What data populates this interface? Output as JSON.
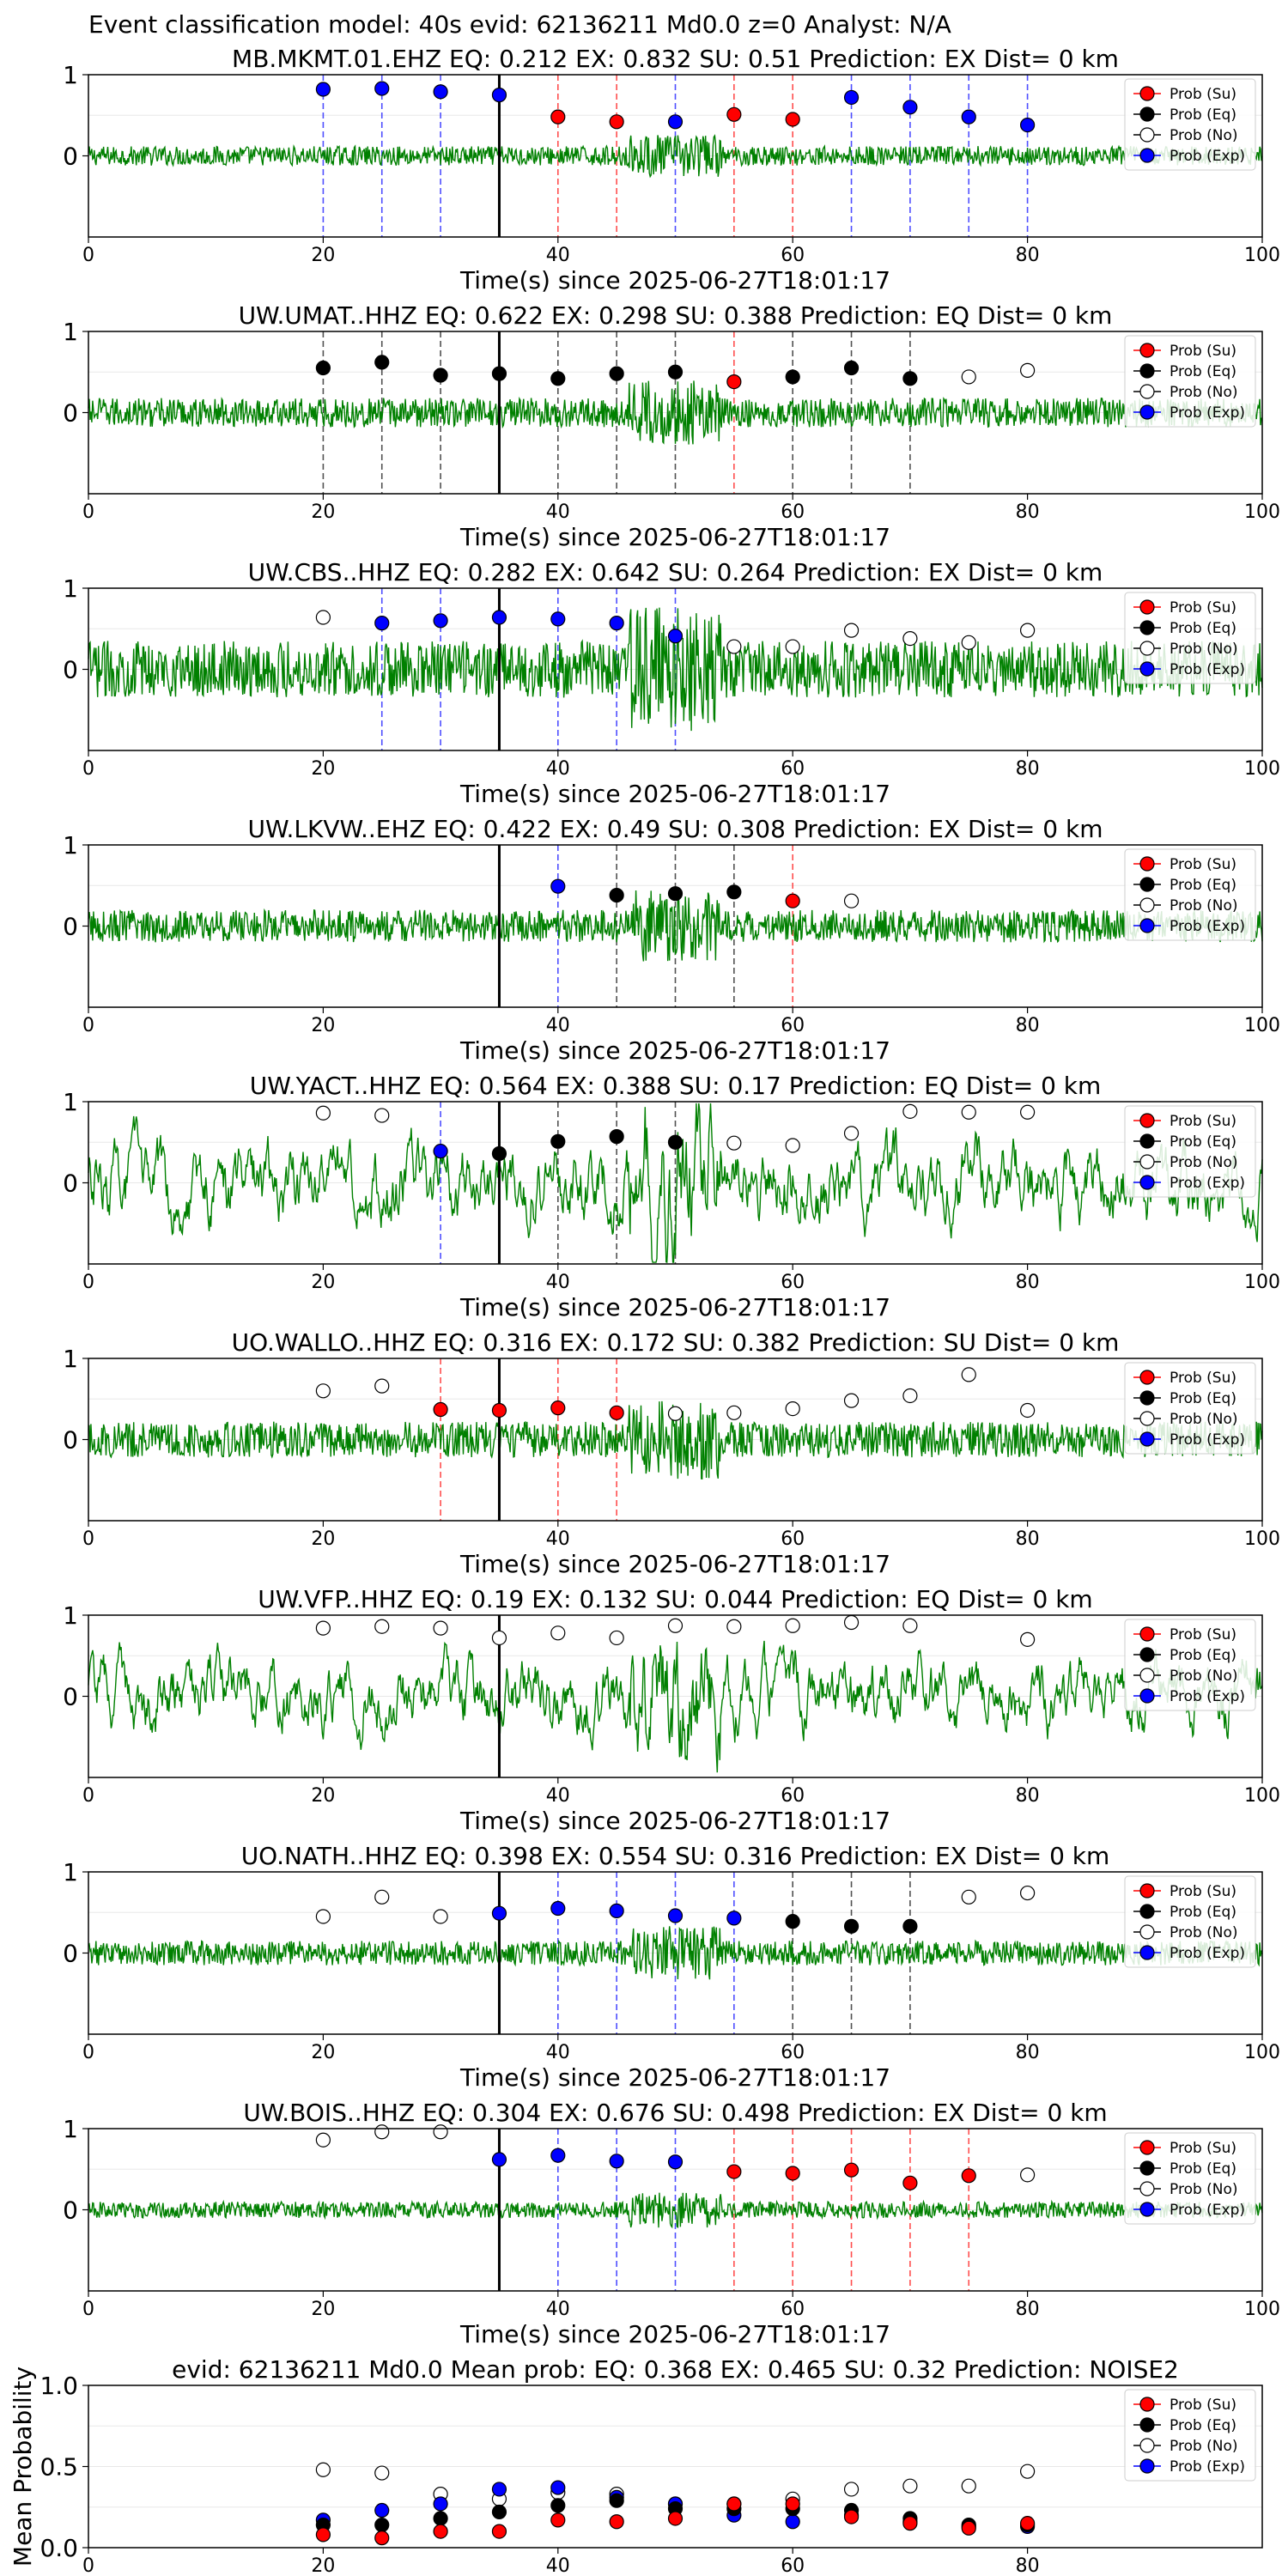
{
  "suptitle": "Event classification model: 40s evid: 62136211 Md0.0 z=0 Analyst: N/A",
  "legend": [
    "Prob (Su)",
    "Prob (Eq)",
    "Prob (No)",
    "Prob (Exp)"
  ],
  "colors": {
    "Su": "#ff0000",
    "Eq": "#000000",
    "No": "#ffffff",
    "Exp": "#0000ff",
    "trace": "#008000",
    "marker": "#000000"
  },
  "chart_data": [
    {
      "type": "line",
      "title": "MB.MKMT.01.EHZ   EQ: 0.212  EX: 0.832  SU: 0.51   Prediction: EX    Dist= 0 km",
      "xlabel": "Time(s) since 2025-06-27T18:01:17",
      "xlim": [
        0,
        100
      ],
      "ylim": [
        -1,
        1
      ],
      "xticks": [
        "0",
        "20",
        "40",
        "60",
        "80",
        "100"
      ],
      "yticks": [
        "1",
        "0"
      ],
      "marker_x": 35,
      "noise_amp": 0.12,
      "points": [
        {
          "x": 20,
          "y": 0.82,
          "c": "Exp"
        },
        {
          "x": 25,
          "y": 0.83,
          "c": "Exp"
        },
        {
          "x": 30,
          "y": 0.79,
          "c": "Exp"
        },
        {
          "x": 35,
          "y": 0.75,
          "c": "Exp"
        },
        {
          "x": 40,
          "y": 0.48,
          "c": "Su"
        },
        {
          "x": 45,
          "y": 0.42,
          "c": "Su"
        },
        {
          "x": 50,
          "y": 0.42,
          "c": "Exp"
        },
        {
          "x": 55,
          "y": 0.51,
          "c": "Su"
        },
        {
          "x": 60,
          "y": 0.45,
          "c": "Su"
        },
        {
          "x": 65,
          "y": 0.72,
          "c": "Exp"
        },
        {
          "x": 70,
          "y": 0.6,
          "c": "Exp"
        },
        {
          "x": 75,
          "y": 0.48,
          "c": "Exp"
        },
        {
          "x": 80,
          "y": 0.38,
          "c": "Exp"
        }
      ]
    },
    {
      "type": "line",
      "title": "UW.UMAT..HHZ   EQ: 0.622  EX: 0.298  SU: 0.388   Prediction: EQ    Dist= 0 km",
      "xlabel": "Time(s) since 2025-06-27T18:01:17",
      "xlim": [
        0,
        100
      ],
      "ylim": [
        -1,
        1
      ],
      "xticks": [
        "0",
        "20",
        "40",
        "60",
        "80",
        "100"
      ],
      "yticks": [
        "1",
        "0"
      ],
      "marker_x": 35,
      "noise_amp": 0.18,
      "points": [
        {
          "x": 20,
          "y": 0.55,
          "c": "Eq"
        },
        {
          "x": 25,
          "y": 0.62,
          "c": "Eq"
        },
        {
          "x": 30,
          "y": 0.46,
          "c": "Eq"
        },
        {
          "x": 35,
          "y": 0.48,
          "c": "Eq"
        },
        {
          "x": 40,
          "y": 0.42,
          "c": "Eq"
        },
        {
          "x": 45,
          "y": 0.48,
          "c": "Eq"
        },
        {
          "x": 50,
          "y": 0.5,
          "c": "Eq"
        },
        {
          "x": 55,
          "y": 0.38,
          "c": "Su"
        },
        {
          "x": 60,
          "y": 0.44,
          "c": "Eq"
        },
        {
          "x": 65,
          "y": 0.55,
          "c": "Eq"
        },
        {
          "x": 70,
          "y": 0.42,
          "c": "Eq"
        },
        {
          "x": 75,
          "y": 0.44,
          "c": "No"
        },
        {
          "x": 80,
          "y": 0.52,
          "c": "No"
        }
      ]
    },
    {
      "type": "line",
      "title": "UW.CBS..HHZ   EQ: 0.282  EX: 0.642  SU: 0.264   Prediction: EX    Dist= 0 km",
      "xlabel": "Time(s) since 2025-06-27T18:01:17",
      "xlim": [
        0,
        100
      ],
      "ylim": [
        -1,
        1
      ],
      "xticks": [
        "0",
        "20",
        "40",
        "60",
        "80",
        "100"
      ],
      "yticks": [
        "1",
        "0"
      ],
      "marker_x": 35,
      "noise_amp": 0.35,
      "points": [
        {
          "x": 20,
          "y": 0.64,
          "c": "No"
        },
        {
          "x": 25,
          "y": 0.57,
          "c": "Exp"
        },
        {
          "x": 30,
          "y": 0.6,
          "c": "Exp"
        },
        {
          "x": 35,
          "y": 0.64,
          "c": "Exp"
        },
        {
          "x": 40,
          "y": 0.62,
          "c": "Exp"
        },
        {
          "x": 45,
          "y": 0.57,
          "c": "Exp"
        },
        {
          "x": 50,
          "y": 0.41,
          "c": "Exp"
        },
        {
          "x": 55,
          "y": 0.28,
          "c": "No"
        },
        {
          "x": 60,
          "y": 0.28,
          "c": "No"
        },
        {
          "x": 65,
          "y": 0.48,
          "c": "No"
        },
        {
          "x": 70,
          "y": 0.38,
          "c": "No"
        },
        {
          "x": 75,
          "y": 0.33,
          "c": "No"
        },
        {
          "x": 80,
          "y": 0.48,
          "c": "No"
        }
      ]
    },
    {
      "type": "line",
      "title": "UW.LKVW..EHZ   EQ: 0.422  EX: 0.49  SU: 0.308   Prediction: EX    Dist= 0 km",
      "xlabel": "Time(s) since 2025-06-27T18:01:17",
      "xlim": [
        0,
        100
      ],
      "ylim": [
        -1,
        1
      ],
      "xticks": [
        "0",
        "20",
        "40",
        "60",
        "80",
        "100"
      ],
      "yticks": [
        "1",
        "0"
      ],
      "marker_x": 35,
      "noise_amp": 0.2,
      "points": [
        {
          "x": 40,
          "y": 0.49,
          "c": "Exp"
        },
        {
          "x": 45,
          "y": 0.38,
          "c": "Eq"
        },
        {
          "x": 50,
          "y": 0.4,
          "c": "Eq"
        },
        {
          "x": 55,
          "y": 0.42,
          "c": "Eq"
        },
        {
          "x": 60,
          "y": 0.31,
          "c": "Su"
        },
        {
          "x": 65,
          "y": 0.31,
          "c": "No"
        }
      ]
    },
    {
      "type": "line",
      "title": "UW.YACT..HHZ   EQ: 0.564  EX: 0.388  SU: 0.17   Prediction: EQ    Dist= 0 km",
      "xlabel": "Time(s) since 2025-06-27T18:01:17",
      "xlim": [
        0,
        100
      ],
      "ylim": [
        -1,
        1
      ],
      "xticks": [
        "0",
        "20",
        "40",
        "60",
        "80",
        "100"
      ],
      "yticks": [
        "1",
        "0"
      ],
      "marker_x": 35,
      "noise_amp": 0.5,
      "points": [
        {
          "x": 20,
          "y": 0.86,
          "c": "No"
        },
        {
          "x": 25,
          "y": 0.83,
          "c": "No"
        },
        {
          "x": 30,
          "y": 0.39,
          "c": "Exp"
        },
        {
          "x": 35,
          "y": 0.36,
          "c": "Eq"
        },
        {
          "x": 40,
          "y": 0.51,
          "c": "Eq"
        },
        {
          "x": 45,
          "y": 0.57,
          "c": "Eq"
        },
        {
          "x": 50,
          "y": 0.5,
          "c": "Eq"
        },
        {
          "x": 55,
          "y": 0.49,
          "c": "No"
        },
        {
          "x": 60,
          "y": 0.46,
          "c": "No"
        },
        {
          "x": 65,
          "y": 0.61,
          "c": "No"
        },
        {
          "x": 70,
          "y": 0.88,
          "c": "No"
        },
        {
          "x": 75,
          "y": 0.87,
          "c": "No"
        },
        {
          "x": 80,
          "y": 0.87,
          "c": "No"
        }
      ]
    },
    {
      "type": "line",
      "title": "UO.WALLO..HHZ   EQ: 0.316  EX: 0.172  SU: 0.382   Prediction: SU    Dist= 0 km",
      "xlabel": "Time(s) since 2025-06-27T18:01:17",
      "xlim": [
        0,
        100
      ],
      "ylim": [
        -1,
        1
      ],
      "xticks": [
        "0",
        "20",
        "40",
        "60",
        "80",
        "100"
      ],
      "yticks": [
        "1",
        "0"
      ],
      "marker_x": 35,
      "noise_amp": 0.22,
      "points": [
        {
          "x": 20,
          "y": 0.6,
          "c": "No"
        },
        {
          "x": 25,
          "y": 0.66,
          "c": "No"
        },
        {
          "x": 30,
          "y": 0.37,
          "c": "Su"
        },
        {
          "x": 35,
          "y": 0.36,
          "c": "Su"
        },
        {
          "x": 40,
          "y": 0.39,
          "c": "Su"
        },
        {
          "x": 45,
          "y": 0.33,
          "c": "Su"
        },
        {
          "x": 50,
          "y": 0.32,
          "c": "No"
        },
        {
          "x": 55,
          "y": 0.33,
          "c": "No"
        },
        {
          "x": 60,
          "y": 0.38,
          "c": "No"
        },
        {
          "x": 65,
          "y": 0.48,
          "c": "No"
        },
        {
          "x": 70,
          "y": 0.54,
          "c": "No"
        },
        {
          "x": 75,
          "y": 0.8,
          "c": "No"
        },
        {
          "x": 80,
          "y": 0.36,
          "c": "No"
        }
      ]
    },
    {
      "type": "line",
      "title": "UW.VFP..HHZ   EQ: 0.19  EX: 0.132  SU: 0.044   Prediction: EQ    Dist= 0 km",
      "xlabel": "Time(s) since 2025-06-27T18:01:17",
      "xlim": [
        0,
        100
      ],
      "ylim": [
        -1,
        1
      ],
      "xticks": [
        "0",
        "20",
        "40",
        "60",
        "80",
        "100"
      ],
      "yticks": [
        "1",
        "0"
      ],
      "marker_x": 35,
      "noise_amp": 0.45,
      "points": [
        {
          "x": 20,
          "y": 0.84,
          "c": "No"
        },
        {
          "x": 25,
          "y": 0.86,
          "c": "No"
        },
        {
          "x": 30,
          "y": 0.84,
          "c": "No"
        },
        {
          "x": 35,
          "y": 0.72,
          "c": "No"
        },
        {
          "x": 40,
          "y": 0.78,
          "c": "No"
        },
        {
          "x": 45,
          "y": 0.72,
          "c": "No"
        },
        {
          "x": 50,
          "y": 0.87,
          "c": "No"
        },
        {
          "x": 55,
          "y": 0.86,
          "c": "No"
        },
        {
          "x": 60,
          "y": 0.87,
          "c": "No"
        },
        {
          "x": 65,
          "y": 0.91,
          "c": "No"
        },
        {
          "x": 70,
          "y": 0.87,
          "c": "No"
        },
        {
          "x": 80,
          "y": 0.7,
          "c": "No"
        }
      ]
    },
    {
      "type": "line",
      "title": "UO.NATH..HHZ   EQ: 0.398  EX: 0.554  SU: 0.316   Prediction: EX    Dist= 0 km",
      "xlabel": "Time(s) since 2025-06-27T18:01:17",
      "xlim": [
        0,
        100
      ],
      "ylim": [
        -1,
        1
      ],
      "xticks": [
        "0",
        "20",
        "40",
        "60",
        "80",
        "100"
      ],
      "yticks": [
        "1",
        "0"
      ],
      "marker_x": 35,
      "noise_amp": 0.15,
      "points": [
        {
          "x": 20,
          "y": 0.45,
          "c": "No"
        },
        {
          "x": 25,
          "y": 0.69,
          "c": "No"
        },
        {
          "x": 30,
          "y": 0.45,
          "c": "No"
        },
        {
          "x": 35,
          "y": 0.49,
          "c": "Exp"
        },
        {
          "x": 40,
          "y": 0.55,
          "c": "Exp"
        },
        {
          "x": 45,
          "y": 0.52,
          "c": "Exp"
        },
        {
          "x": 50,
          "y": 0.46,
          "c": "Exp"
        },
        {
          "x": 55,
          "y": 0.43,
          "c": "Exp"
        },
        {
          "x": 60,
          "y": 0.39,
          "c": "Eq"
        },
        {
          "x": 65,
          "y": 0.33,
          "c": "Eq"
        },
        {
          "x": 70,
          "y": 0.33,
          "c": "Eq"
        },
        {
          "x": 75,
          "y": 0.69,
          "c": "No"
        },
        {
          "x": 80,
          "y": 0.74,
          "c": "No"
        }
      ]
    },
    {
      "type": "line",
      "title": "UW.BOIS..HHZ   EQ: 0.304  EX: 0.676  SU: 0.498   Prediction: EX    Dist= 0 km",
      "xlabel": "Time(s) since 2025-06-27T18:01:17",
      "xlim": [
        0,
        100
      ],
      "ylim": [
        -1,
        1
      ],
      "xticks": [
        "0",
        "20",
        "40",
        "60",
        "80",
        "100"
      ],
      "yticks": [
        "1",
        "0"
      ],
      "marker_x": 35,
      "noise_amp": 0.1,
      "points": [
        {
          "x": 20,
          "y": 0.86,
          "c": "No"
        },
        {
          "x": 25,
          "y": 0.96,
          "c": "No"
        },
        {
          "x": 30,
          "y": 0.96,
          "c": "No"
        },
        {
          "x": 35,
          "y": 0.62,
          "c": "Exp"
        },
        {
          "x": 40,
          "y": 0.67,
          "c": "Exp"
        },
        {
          "x": 45,
          "y": 0.6,
          "c": "Exp"
        },
        {
          "x": 50,
          "y": 0.59,
          "c": "Exp"
        },
        {
          "x": 55,
          "y": 0.47,
          "c": "Su"
        },
        {
          "x": 60,
          "y": 0.45,
          "c": "Su"
        },
        {
          "x": 65,
          "y": 0.49,
          "c": "Su"
        },
        {
          "x": 70,
          "y": 0.33,
          "c": "Su"
        },
        {
          "x": 75,
          "y": 0.42,
          "c": "Su"
        },
        {
          "x": 80,
          "y": 0.43,
          "c": "No"
        }
      ]
    },
    {
      "type": "scatter",
      "title": "evid: 62136211  Md0.0   Mean prob:   EQ: 0.368  EX: 0.465  SU: 0.32   Prediction: NOISE2",
      "ylabel": "Mean Probability",
      "xlim": [
        0,
        100
      ],
      "ylim": [
        0,
        1
      ],
      "xticks": [
        "0",
        "20",
        "40",
        "60",
        "80"
      ],
      "yticks": [
        "0.0",
        "0.5",
        "1.0"
      ],
      "points": [
        {
          "x": 20,
          "y": 0.48,
          "c": "No"
        },
        {
          "x": 25,
          "y": 0.46,
          "c": "No"
        },
        {
          "x": 30,
          "y": 0.33,
          "c": "No"
        },
        {
          "x": 35,
          "y": 0.3,
          "c": "No"
        },
        {
          "x": 40,
          "y": 0.34,
          "c": "No"
        },
        {
          "x": 45,
          "y": 0.33,
          "c": "No"
        },
        {
          "x": 50,
          "y": 0.27,
          "c": "No"
        },
        {
          "x": 55,
          "y": 0.27,
          "c": "No"
        },
        {
          "x": 60,
          "y": 0.3,
          "c": "No"
        },
        {
          "x": 65,
          "y": 0.36,
          "c": "No"
        },
        {
          "x": 70,
          "y": 0.38,
          "c": "No"
        },
        {
          "x": 75,
          "y": 0.38,
          "c": "No"
        },
        {
          "x": 80,
          "y": 0.47,
          "c": "No"
        },
        {
          "x": 20,
          "y": 0.17,
          "c": "Exp"
        },
        {
          "x": 25,
          "y": 0.23,
          "c": "Exp"
        },
        {
          "x": 30,
          "y": 0.27,
          "c": "Exp"
        },
        {
          "x": 35,
          "y": 0.36,
          "c": "Exp"
        },
        {
          "x": 40,
          "y": 0.37,
          "c": "Exp"
        },
        {
          "x": 45,
          "y": 0.31,
          "c": "Exp"
        },
        {
          "x": 50,
          "y": 0.27,
          "c": "Exp"
        },
        {
          "x": 55,
          "y": 0.2,
          "c": "Exp"
        },
        {
          "x": 60,
          "y": 0.16,
          "c": "Exp"
        },
        {
          "x": 65,
          "y": 0.2,
          "c": "Exp"
        },
        {
          "x": 70,
          "y": 0.16,
          "c": "Exp"
        },
        {
          "x": 75,
          "y": 0.13,
          "c": "Exp"
        },
        {
          "x": 80,
          "y": 0.13,
          "c": "Exp"
        },
        {
          "x": 20,
          "y": 0.14,
          "c": "Eq"
        },
        {
          "x": 25,
          "y": 0.14,
          "c": "Eq"
        },
        {
          "x": 30,
          "y": 0.18,
          "c": "Eq"
        },
        {
          "x": 35,
          "y": 0.22,
          "c": "Eq"
        },
        {
          "x": 40,
          "y": 0.26,
          "c": "Eq"
        },
        {
          "x": 45,
          "y": 0.29,
          "c": "Eq"
        },
        {
          "x": 50,
          "y": 0.24,
          "c": "Eq"
        },
        {
          "x": 55,
          "y": 0.24,
          "c": "Eq"
        },
        {
          "x": 60,
          "y": 0.24,
          "c": "Eq"
        },
        {
          "x": 65,
          "y": 0.23,
          "c": "Eq"
        },
        {
          "x": 70,
          "y": 0.18,
          "c": "Eq"
        },
        {
          "x": 75,
          "y": 0.14,
          "c": "Eq"
        },
        {
          "x": 80,
          "y": 0.14,
          "c": "Eq"
        },
        {
          "x": 20,
          "y": 0.08,
          "c": "Su"
        },
        {
          "x": 25,
          "y": 0.06,
          "c": "Su"
        },
        {
          "x": 30,
          "y": 0.1,
          "c": "Su"
        },
        {
          "x": 35,
          "y": 0.1,
          "c": "Su"
        },
        {
          "x": 40,
          "y": 0.17,
          "c": "Su"
        },
        {
          "x": 45,
          "y": 0.16,
          "c": "Su"
        },
        {
          "x": 50,
          "y": 0.18,
          "c": "Su"
        },
        {
          "x": 55,
          "y": 0.27,
          "c": "Su"
        },
        {
          "x": 60,
          "y": 0.27,
          "c": "Su"
        },
        {
          "x": 65,
          "y": 0.19,
          "c": "Su"
        },
        {
          "x": 70,
          "y": 0.15,
          "c": "Su"
        },
        {
          "x": 75,
          "y": 0.12,
          "c": "Su"
        },
        {
          "x": 80,
          "y": 0.15,
          "c": "Su"
        }
      ]
    }
  ]
}
